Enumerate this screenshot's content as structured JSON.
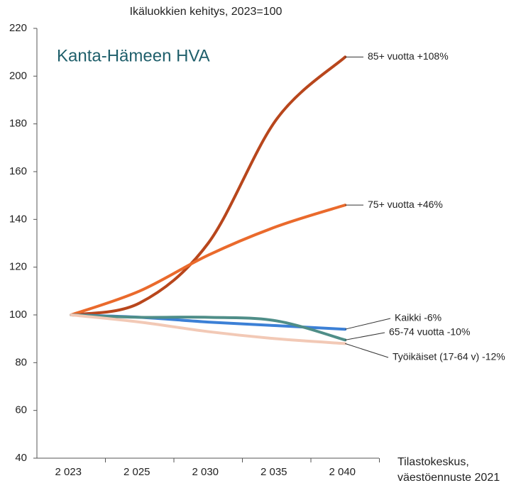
{
  "chart_data": {
    "type": "line",
    "title": "Ikäluokkien kehitys, 2023=100",
    "annotation": "Kanta-Hämeen HVA",
    "source": [
      "Tilastokeskus,",
      "väestöennuste 2021"
    ],
    "categories": [
      "2 023",
      "2 025",
      "2 030",
      "2 035",
      "2 040"
    ],
    "series": [
      {
        "name": "85+ vuotta +108%",
        "color": "#b8461c",
        "values": [
          100,
          105,
          130,
          182,
          208
        ]
      },
      {
        "name": "75+ vuotta +46%",
        "color": "#ea6a2c",
        "values": [
          100,
          110,
          125,
          137,
          146
        ]
      },
      {
        "name": "Kaikki -6%",
        "color": "#3c80d6",
        "values": [
          100,
          99,
          97,
          95.5,
          94
        ]
      },
      {
        "name": "65-74 vuotta -10%",
        "color": "#4f8e88",
        "values": [
          100,
          99,
          99,
          97.5,
          89.5
        ]
      },
      {
        "name": "Työikäiset (17-64 v) -12%",
        "color": "#f2c9b6",
        "values": [
          100,
          97,
          93,
          90,
          88
        ]
      }
    ],
    "ylim": [
      40,
      220
    ],
    "yticks": [
      40,
      60,
      80,
      100,
      120,
      140,
      160,
      180,
      200,
      220
    ],
    "grid": false
  }
}
